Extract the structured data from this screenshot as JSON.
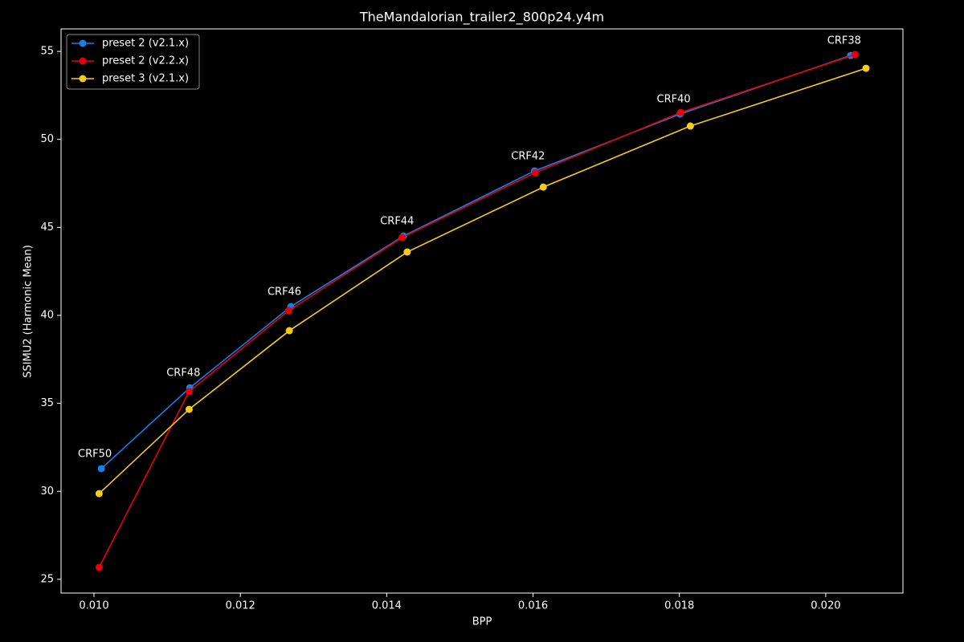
{
  "chart_data": {
    "type": "line",
    "title": "TheMandalorian_trailer2_800p24.y4m",
    "xlabel": "BPP",
    "ylabel": "SSIMU2 (Harmonic Mean)",
    "xlim": [
      0.00955,
      0.021055
    ],
    "ylim": [
      24.22,
      56.28
    ],
    "xticks": [
      {
        "value": 0.01,
        "label": "0.010"
      },
      {
        "value": 0.012,
        "label": "0.012"
      },
      {
        "value": 0.014,
        "label": "0.014"
      },
      {
        "value": 0.016,
        "label": "0.016"
      },
      {
        "value": 0.018,
        "label": "0.018"
      },
      {
        "value": 0.02,
        "label": "0.020"
      }
    ],
    "yticks": [
      25,
      30,
      35,
      40,
      45,
      50,
      55
    ],
    "grid": false,
    "legend": "upper left",
    "series": [
      {
        "name": "preset 2 (v2.1.x)",
        "color": "#1a7ee6",
        "x": [
          0.0101,
          0.01131,
          0.01269,
          0.01423,
          0.01602,
          0.01801,
          0.02034
        ],
        "values": [
          31.29,
          35.89,
          40.5,
          44.51,
          48.21,
          51.44,
          54.77
        ]
      },
      {
        "name": "preset 2 (v2.2.x)",
        "color": "#e8000b",
        "x": [
          0.01007,
          0.0113,
          0.01266,
          0.01421,
          0.01603,
          0.01802,
          0.0204
        ],
        "values": [
          25.68,
          35.67,
          40.27,
          44.42,
          48.11,
          51.53,
          54.82
        ]
      },
      {
        "name": "preset 3 (v2.1.x)",
        "color": "#f5cc17",
        "x": [
          0.01007,
          0.0113,
          0.01267,
          0.01428,
          0.01614,
          0.01815,
          0.02055
        ],
        "values": [
          29.87,
          34.66,
          39.13,
          43.6,
          47.29,
          50.76,
          54.04
        ]
      }
    ],
    "annotations": [
      "CRF50",
      "CRF48",
      "CRF46",
      "CRF44",
      "CRF42",
      "CRF40",
      "CRF38"
    ]
  }
}
